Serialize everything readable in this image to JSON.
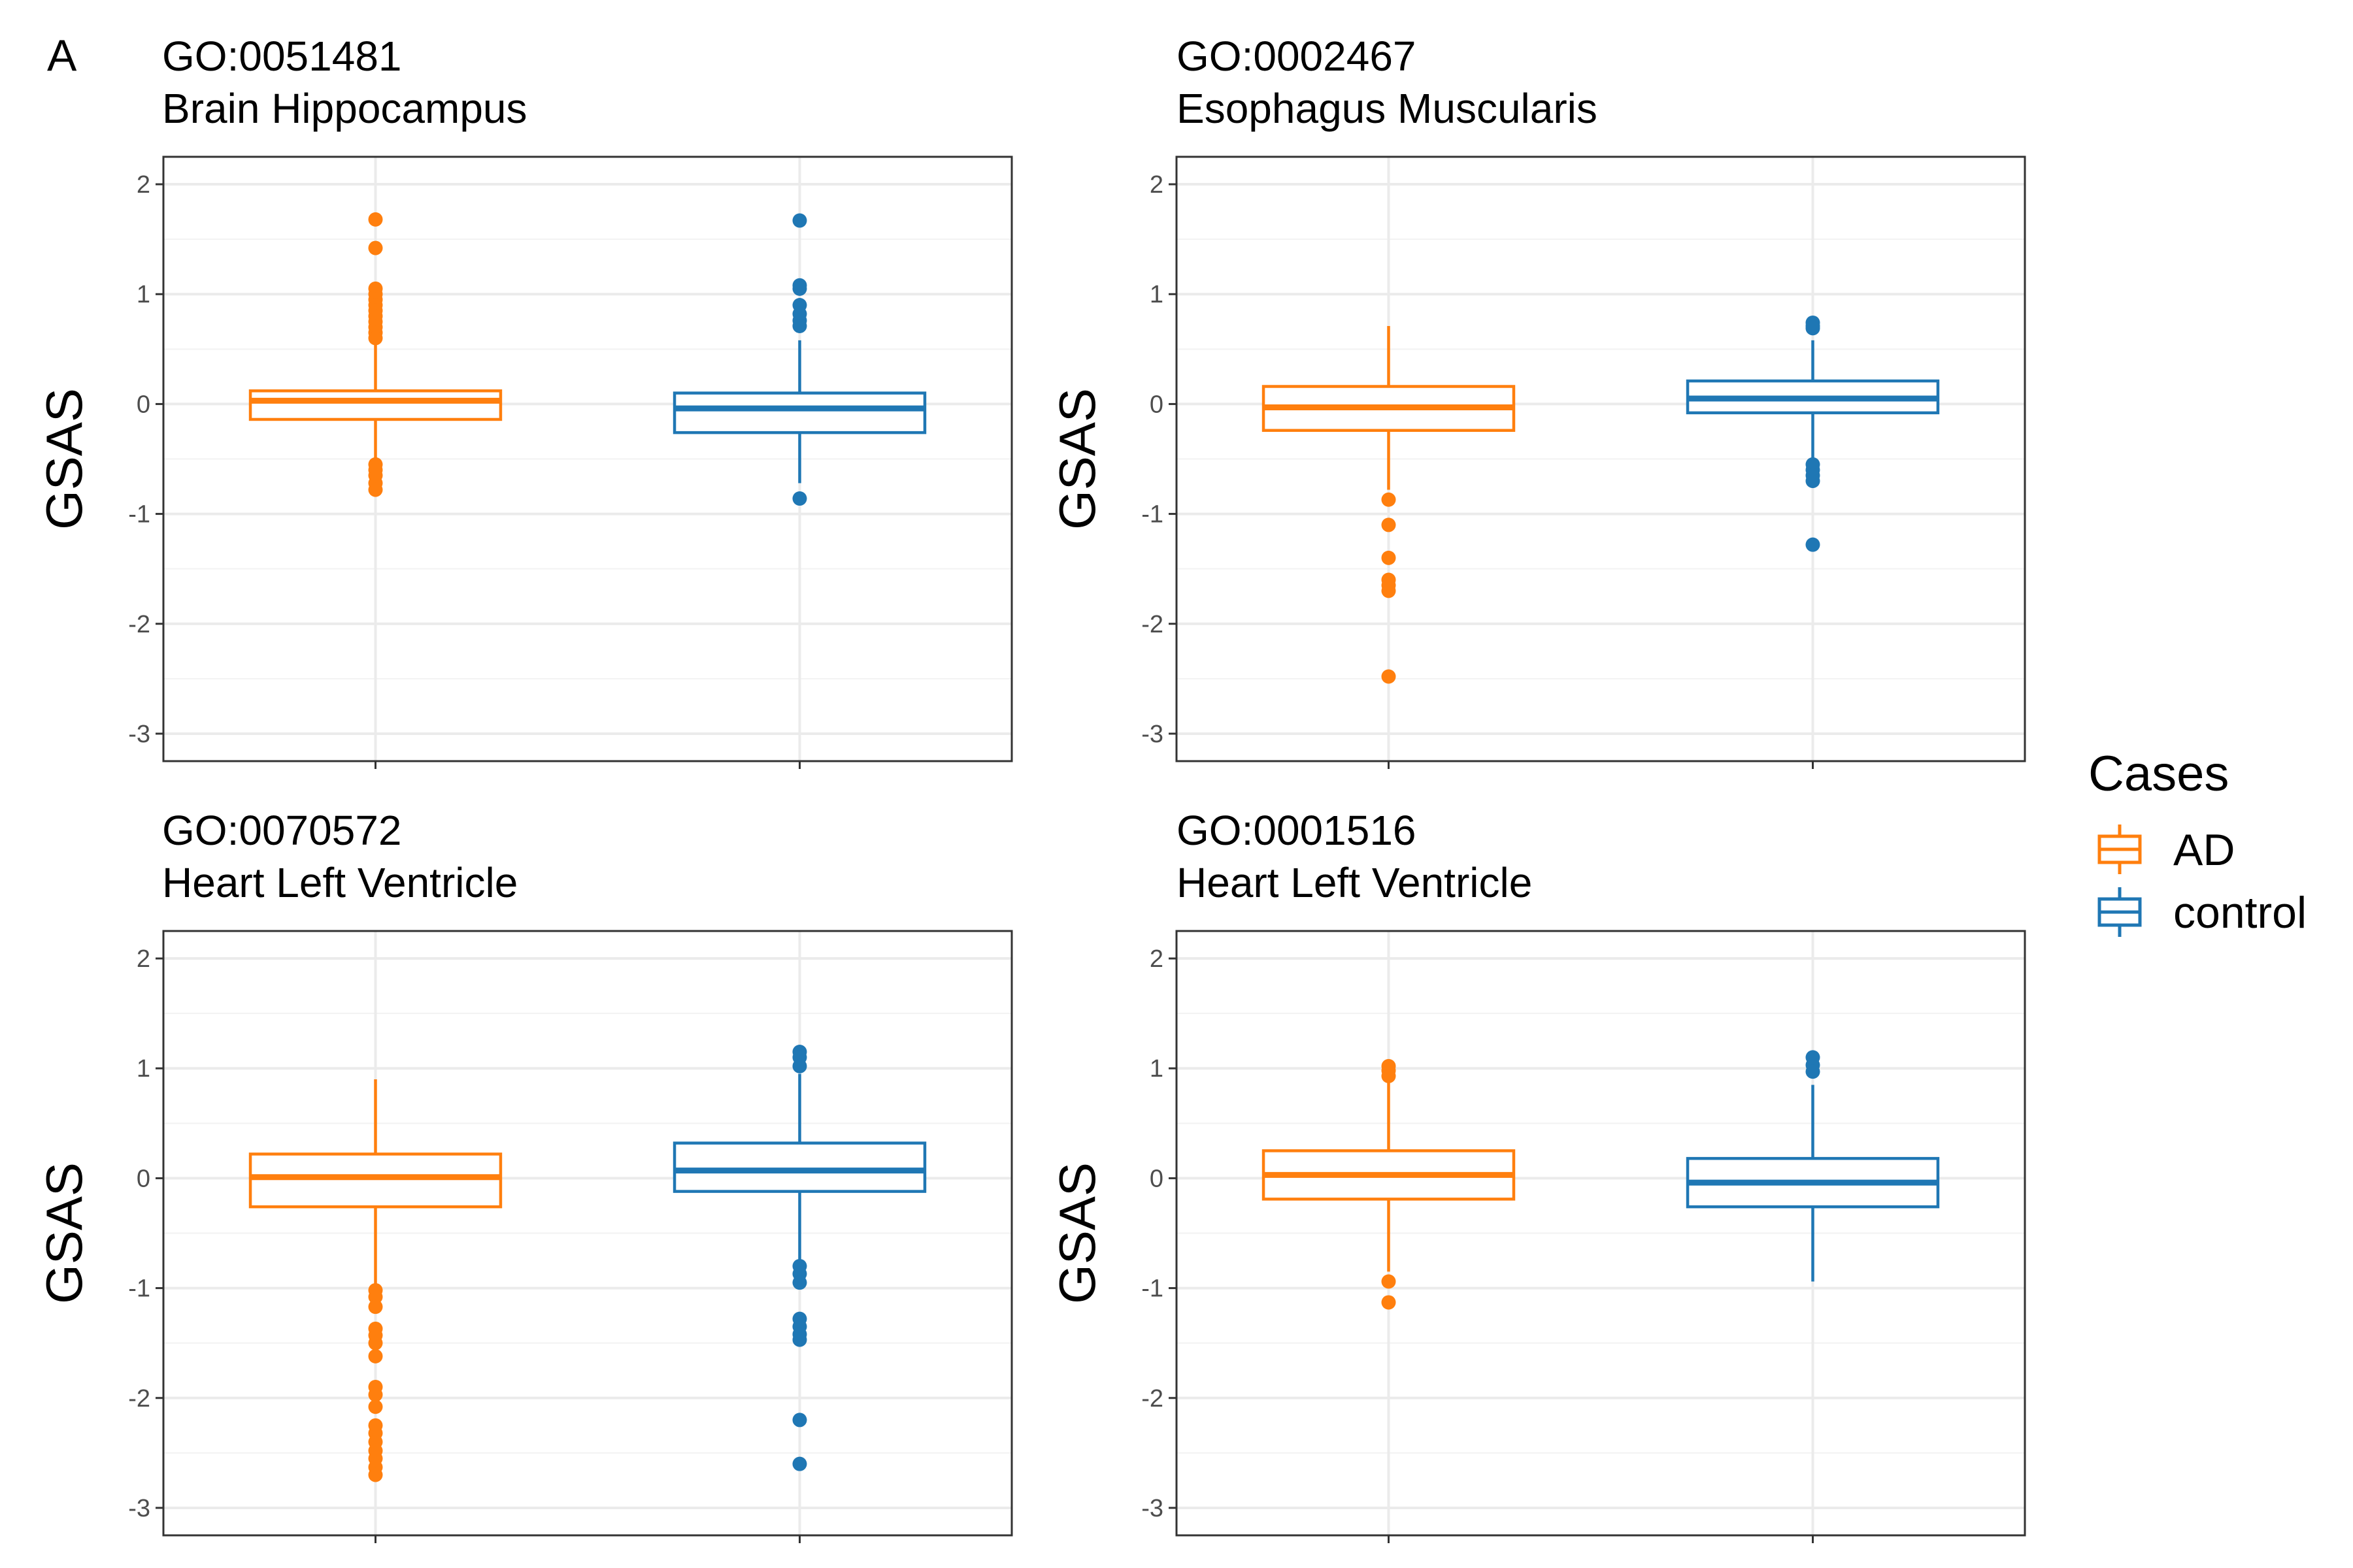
{
  "figure": {
    "panel_label": "A"
  },
  "legend": {
    "title": "Cases",
    "items": [
      {
        "label": "AD",
        "color": "#FF7F0E"
      },
      {
        "label": "control",
        "color": "#1F77B4"
      }
    ]
  },
  "chart_data": [
    {
      "type": "box",
      "title": "GO:0051481",
      "subtitle": "Brain Hippocampus",
      "ylabel": "GSAS",
      "ylim": [
        -3.25,
        2.25
      ],
      "yticks": [
        2,
        1,
        0,
        -1,
        -2,
        -3
      ],
      "grid": true,
      "series": [
        {
          "name": "AD",
          "color": "#FF7F0E",
          "q1": -0.14,
          "median": 0.03,
          "q3": 0.12,
          "whisker_low": -0.5,
          "whisker_high": 0.55,
          "outliers": [
            1.68,
            1.42,
            1.05,
            1.0,
            0.95,
            0.9,
            0.85,
            0.8,
            0.75,
            0.7,
            0.65,
            0.6,
            -0.55,
            -0.6,
            -0.65,
            -0.72,
            -0.78
          ]
        },
        {
          "name": "control",
          "color": "#1F77B4",
          "q1": -0.26,
          "median": -0.04,
          "q3": 0.1,
          "whisker_low": -0.72,
          "whisker_high": 0.58,
          "outliers": [
            1.67,
            1.08,
            1.05,
            0.9,
            0.82,
            0.76,
            0.71,
            -0.86
          ]
        }
      ]
    },
    {
      "type": "box",
      "title": "GO:0002467",
      "subtitle": "Esophagus Muscularis",
      "ylabel": "GSAS",
      "ylim": [
        -3.25,
        2.25
      ],
      "yticks": [
        2,
        1,
        0,
        -1,
        -2,
        -3
      ],
      "grid": true,
      "series": [
        {
          "name": "AD",
          "color": "#FF7F0E",
          "q1": -0.24,
          "median": -0.03,
          "q3": 0.16,
          "whisker_low": -0.78,
          "whisker_high": 0.71,
          "outliers": [
            -0.87,
            -1.1,
            -1.4,
            -1.6,
            -1.65,
            -1.7,
            -2.48
          ]
        },
        {
          "name": "control",
          "color": "#1F77B4",
          "q1": -0.08,
          "median": 0.05,
          "q3": 0.21,
          "whisker_low": -0.5,
          "whisker_high": 0.58,
          "outliers": [
            0.74,
            0.71,
            0.69,
            -0.55,
            -0.6,
            -0.65,
            -0.7,
            -1.28
          ]
        }
      ]
    },
    {
      "type": "box",
      "title": "GO:0070572",
      "subtitle": "Heart Left Ventricle",
      "ylabel": "GSAS",
      "ylim": [
        -3.25,
        2.25
      ],
      "yticks": [
        2,
        1,
        0,
        -1,
        -2,
        -3
      ],
      "grid": true,
      "series": [
        {
          "name": "AD",
          "color": "#FF7F0E",
          "q1": -0.26,
          "median": 0.01,
          "q3": 0.22,
          "whisker_low": -0.98,
          "whisker_high": 0.9,
          "outliers": [
            -1.02,
            -1.08,
            -1.17,
            -1.37,
            -1.43,
            -1.5,
            -1.62,
            -1.9,
            -1.97,
            -2.08,
            -2.25,
            -2.32,
            -2.4,
            -2.48,
            -2.55,
            -2.63,
            -2.7
          ]
        },
        {
          "name": "control",
          "color": "#1F77B4",
          "q1": -0.12,
          "median": 0.07,
          "q3": 0.32,
          "whisker_low": -0.75,
          "whisker_high": 0.95,
          "outliers": [
            1.15,
            1.1,
            1.02,
            -0.8,
            -0.87,
            -0.95,
            -1.28,
            -1.35,
            -1.42,
            -1.47,
            -2.2,
            -2.6
          ]
        }
      ]
    },
    {
      "type": "box",
      "title": "GO:0001516",
      "subtitle": "Heart Left Ventricle",
      "ylabel": "GSAS",
      "ylim": [
        -3.25,
        2.25
      ],
      "yticks": [
        2,
        1,
        0,
        -1,
        -2,
        -3
      ],
      "grid": true,
      "series": [
        {
          "name": "AD",
          "color": "#FF7F0E",
          "q1": -0.19,
          "median": 0.03,
          "q3": 0.25,
          "whisker_low": -0.85,
          "whisker_high": 0.88,
          "outliers": [
            1.02,
            0.98,
            0.93,
            -0.94,
            -1.13
          ]
        },
        {
          "name": "control",
          "color": "#1F77B4",
          "q1": -0.26,
          "median": -0.04,
          "q3": 0.18,
          "whisker_low": -0.94,
          "whisker_high": 0.85,
          "outliers": [
            1.1,
            1.03,
            0.97
          ]
        }
      ]
    }
  ]
}
